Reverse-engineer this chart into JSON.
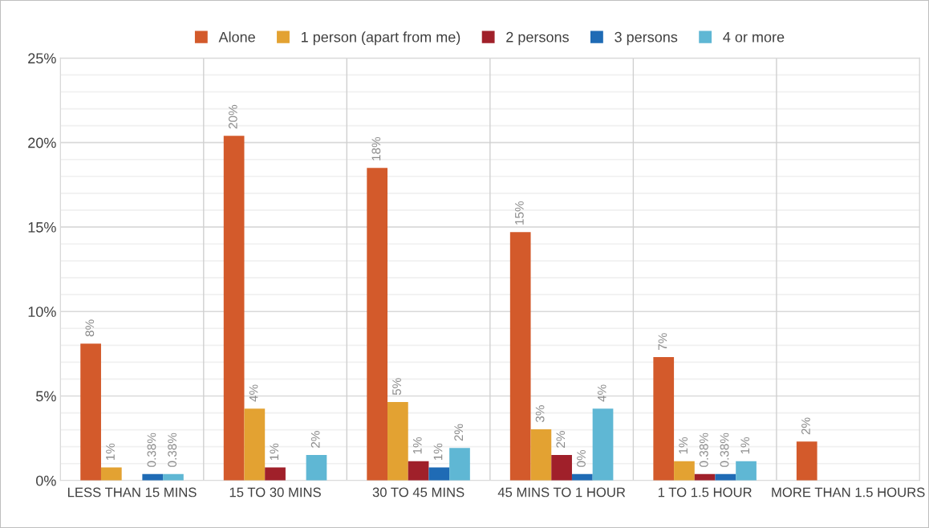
{
  "chart_data": {
    "type": "bar",
    "categories": [
      "LESS THAN 15 MINS",
      "15 TO 30 MINS",
      "30 TO 45 MINS",
      "45 MINS TO 1 HOUR",
      "1 TO 1.5 HOUR",
      "MORE THAN 1.5 HOURS"
    ],
    "series": [
      {
        "name": "Alone",
        "color": "#d35a2b",
        "values": [
          8.1,
          20.4,
          18.5,
          14.7,
          7.3,
          2.3
        ],
        "value_labels": [
          "8%",
          "20%",
          "18%",
          "15%",
          "7%",
          "2%"
        ]
      },
      {
        "name": "1 person (apart from me)",
        "color": "#e3a232",
        "values": [
          0.77,
          4.25,
          4.64,
          3.03,
          1.14,
          null
        ],
        "value_labels": [
          "1%",
          "4%",
          "5%",
          "3%",
          "1%",
          null
        ]
      },
      {
        "name": "2 persons",
        "color": "#a0202a",
        "values": [
          null,
          0.77,
          1.14,
          1.51,
          0.38,
          null
        ],
        "value_labels": [
          null,
          "1%",
          "1%",
          "2%",
          "0.38%",
          null
        ]
      },
      {
        "name": "3 persons",
        "color": "#1f6bb5",
        "values": [
          0.38,
          null,
          0.77,
          0.38,
          0.38,
          null
        ],
        "value_labels": [
          "0.38%",
          null,
          "1%",
          "0%",
          "0.38%",
          null
        ]
      },
      {
        "name": "4 or more",
        "color": "#5fb7d4",
        "values": [
          0.38,
          1.51,
          1.92,
          4.25,
          1.14,
          null
        ],
        "value_labels": [
          "0.38%",
          "2%",
          "2%",
          "4%",
          "1%",
          null
        ]
      }
    ],
    "ylim": [
      0,
      25
    ],
    "yticks": [
      {
        "value": 0,
        "label": "0%"
      },
      {
        "value": 1,
        "label": null
      },
      {
        "value": 2,
        "label": null
      },
      {
        "value": 3,
        "label": null
      },
      {
        "value": 4,
        "label": null
      },
      {
        "value": 5,
        "label": "5%"
      },
      {
        "value": 6,
        "label": null
      },
      {
        "value": 7,
        "label": null
      },
      {
        "value": 8,
        "label": null
      },
      {
        "value": 9,
        "label": null
      },
      {
        "value": 10,
        "label": "10%"
      },
      {
        "value": 11,
        "label": null
      },
      {
        "value": 12,
        "label": null
      },
      {
        "value": 13,
        "label": null
      },
      {
        "value": 14,
        "label": null
      },
      {
        "value": 15,
        "label": "15%"
      },
      {
        "value": 16,
        "label": null
      },
      {
        "value": 17,
        "label": null
      },
      {
        "value": 18,
        "label": null
      },
      {
        "value": 19,
        "label": null
      },
      {
        "value": 20,
        "label": "20%"
      },
      {
        "value": 21,
        "label": null
      },
      {
        "value": 22,
        "label": null
      },
      {
        "value": 23,
        "label": null
      },
      {
        "value": 24,
        "label": null
      },
      {
        "value": 25,
        "label": "25%"
      }
    ],
    "grid": true,
    "legend": "top"
  }
}
